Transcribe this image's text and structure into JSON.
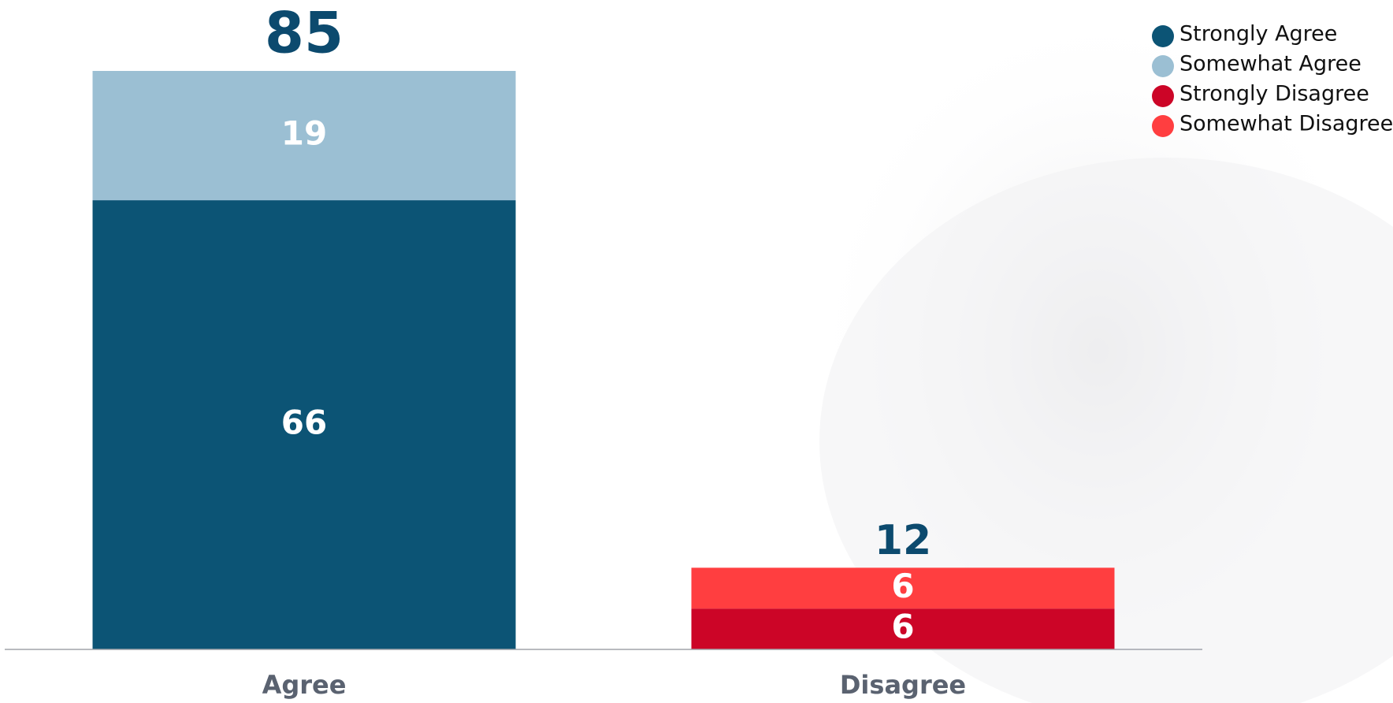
{
  "chart_data": {
    "type": "stacked-bar",
    "categories": [
      "Agree",
      "Disagree"
    ],
    "series": [
      {
        "name": "Strongly Agree",
        "color": "#0c5475",
        "values": [
          66,
          null
        ]
      },
      {
        "name": "Somewhat Agree",
        "color": "#9bbfd3",
        "values": [
          19,
          null
        ]
      },
      {
        "name": "Strongly Disagree",
        "color": "#cc0527",
        "values": [
          null,
          6
        ]
      },
      {
        "name": "Somewhat Disagree",
        "color": "#ff3e40",
        "values": [
          null,
          6
        ]
      }
    ],
    "totals": [
      85,
      12
    ],
    "legend": "top-right"
  }
}
